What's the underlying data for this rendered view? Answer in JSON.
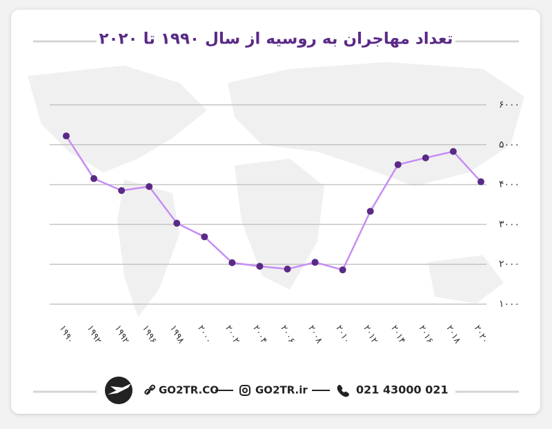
{
  "chart_data": {
    "type": "line",
    "title": "تعداد مهاجران به روسیه از سال ۱۹۹۰ تا ۲۰۲۰",
    "categories": [
      "۱۹۹۰",
      "۱۹۹۲",
      "۱۹۹۲",
      "۱۹۹۶",
      "۱۹۹۸",
      "۲۰۰۰",
      "۲۰۰۲",
      "۲۰۰۴",
      "۲۰۰۶",
      "۲۰۰۸",
      "۲۰۱۰",
      "۲۰۱۲",
      "۲۰۱۴",
      "۲۰۱۶",
      "۲۰۱۸",
      "۲۰۲۰"
    ],
    "series": [
      {
        "color": "#c68cf5",
        "marker_color": "#5a2a86",
        "values": [
          5220,
          4150,
          3850,
          3950,
          3030,
          2690,
          2040,
          1950,
          1880,
          2050,
          1860,
          3330,
          4500,
          4670,
          4830,
          4070
        ]
      }
    ],
    "ylim": [
      1000,
      6000
    ],
    "yticks": [
      {
        "value": 1000,
        "label": "۱۰۰۰"
      },
      {
        "value": 2000,
        "label": "۲۰۰۰"
      },
      {
        "value": 3000,
        "label": "۳۰۰۰"
      },
      {
        "value": 4000,
        "label": "۴۰۰۰"
      },
      {
        "value": 5000,
        "label": "۵۰۰۰"
      },
      {
        "value": 6000,
        "label": "۶۰۰۰"
      }
    ],
    "grid": true
  },
  "footer": {
    "website": "GO2TR.CO",
    "instagram": "GO2TR.ir",
    "phone": "021 43000 021"
  }
}
